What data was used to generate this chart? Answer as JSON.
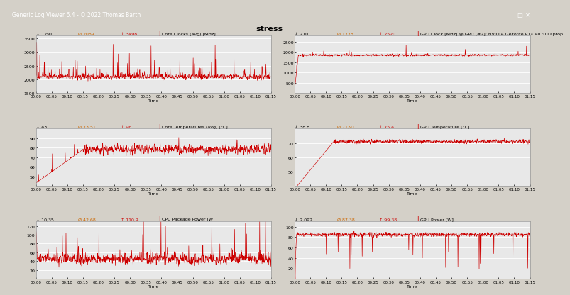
{
  "title": "stress",
  "window_title": "Generic Log Viewer 6.4 - © 2022 Thomas Barth",
  "titlebar_color": "#1a3a6b",
  "titlebar_text_color": "#ffffff",
  "window_bg": "#f0f0f0",
  "panel_bg": "#e8e8e8",
  "grid_color": "#ffffff",
  "line_color": "#cc0000",
  "stat_min_color": "#000000",
  "stat_avg_color": "#cc6600",
  "stat_max_color": "#cc0000",
  "title_label_color": "#000000",
  "red_bar_color": "#cc0000",
  "panels": [
    {
      "title": "Core Clocks (avg) [MHz]",
      "stat_min": "↓ 1291",
      "stat_avg": "Ø 2089",
      "stat_max": "↑ 3498",
      "ylim": [
        1500,
        3600
      ],
      "yticks": [
        1500,
        2000,
        2500,
        3000,
        3500
      ],
      "style": "bar_spiky",
      "baseline": 2100,
      "row": 0,
      "col": 0
    },
    {
      "title": "GPU Clock [MHz] @ GPU [#2]: NVIDIA GeForce RTX 4070 Laptop",
      "stat_min": "↓ 210",
      "stat_avg": "Ø 1778",
      "stat_max": "↑ 2520",
      "ylim": [
        0,
        2800
      ],
      "yticks": [
        500,
        1000,
        1500,
        2000,
        2500
      ],
      "style": "mostly_high",
      "baseline": 1850,
      "row": 0,
      "col": 1
    },
    {
      "title": "Core Temperatures (avg) [°C]",
      "stat_min": "↓ 43",
      "stat_avg": "Ø 73,51",
      "stat_max": "↑ 96",
      "ylim": [
        40,
        100
      ],
      "yticks": [
        50,
        60,
        70,
        80,
        90
      ],
      "style": "temp_cpu",
      "baseline": 78,
      "row": 1,
      "col": 0
    },
    {
      "title": "GPU Temperature [°C]",
      "stat_min": "↓ 38.8",
      "stat_avg": "Ø 71,91",
      "stat_max": "↑ 75.4",
      "ylim": [
        40,
        80
      ],
      "yticks": [
        50,
        60,
        70
      ],
      "style": "temp_gpu",
      "baseline": 71,
      "row": 1,
      "col": 1
    },
    {
      "title": "CPU Package Power [W]",
      "stat_min": "↓ 10,35",
      "stat_avg": "Ø 42,68",
      "stat_max": "↑ 110,9",
      "ylim": [
        0,
        130
      ],
      "yticks": [
        20,
        40,
        60,
        80,
        100,
        120
      ],
      "style": "power_cpu",
      "baseline": 45,
      "row": 2,
      "col": 0
    },
    {
      "title": "GPU Power [W]",
      "stat_min": "↓ 2,092",
      "stat_avg": "Ø 87,38",
      "stat_max": "↑ 99,38",
      "ylim": [
        0,
        110
      ],
      "yticks": [
        20,
        40,
        60,
        80,
        100
      ],
      "style": "power_gpu",
      "baseline": 85,
      "row": 2,
      "col": 1
    }
  ],
  "time_labels": [
    "00:00",
    "00:05",
    "00:10",
    "00:15",
    "00:20",
    "00:25",
    "00:30",
    "00:35",
    "00:40",
    "00:45",
    "00:50",
    "00:55",
    "01:00",
    "01:05",
    "01:10",
    "01:15"
  ],
  "n_points": 900
}
